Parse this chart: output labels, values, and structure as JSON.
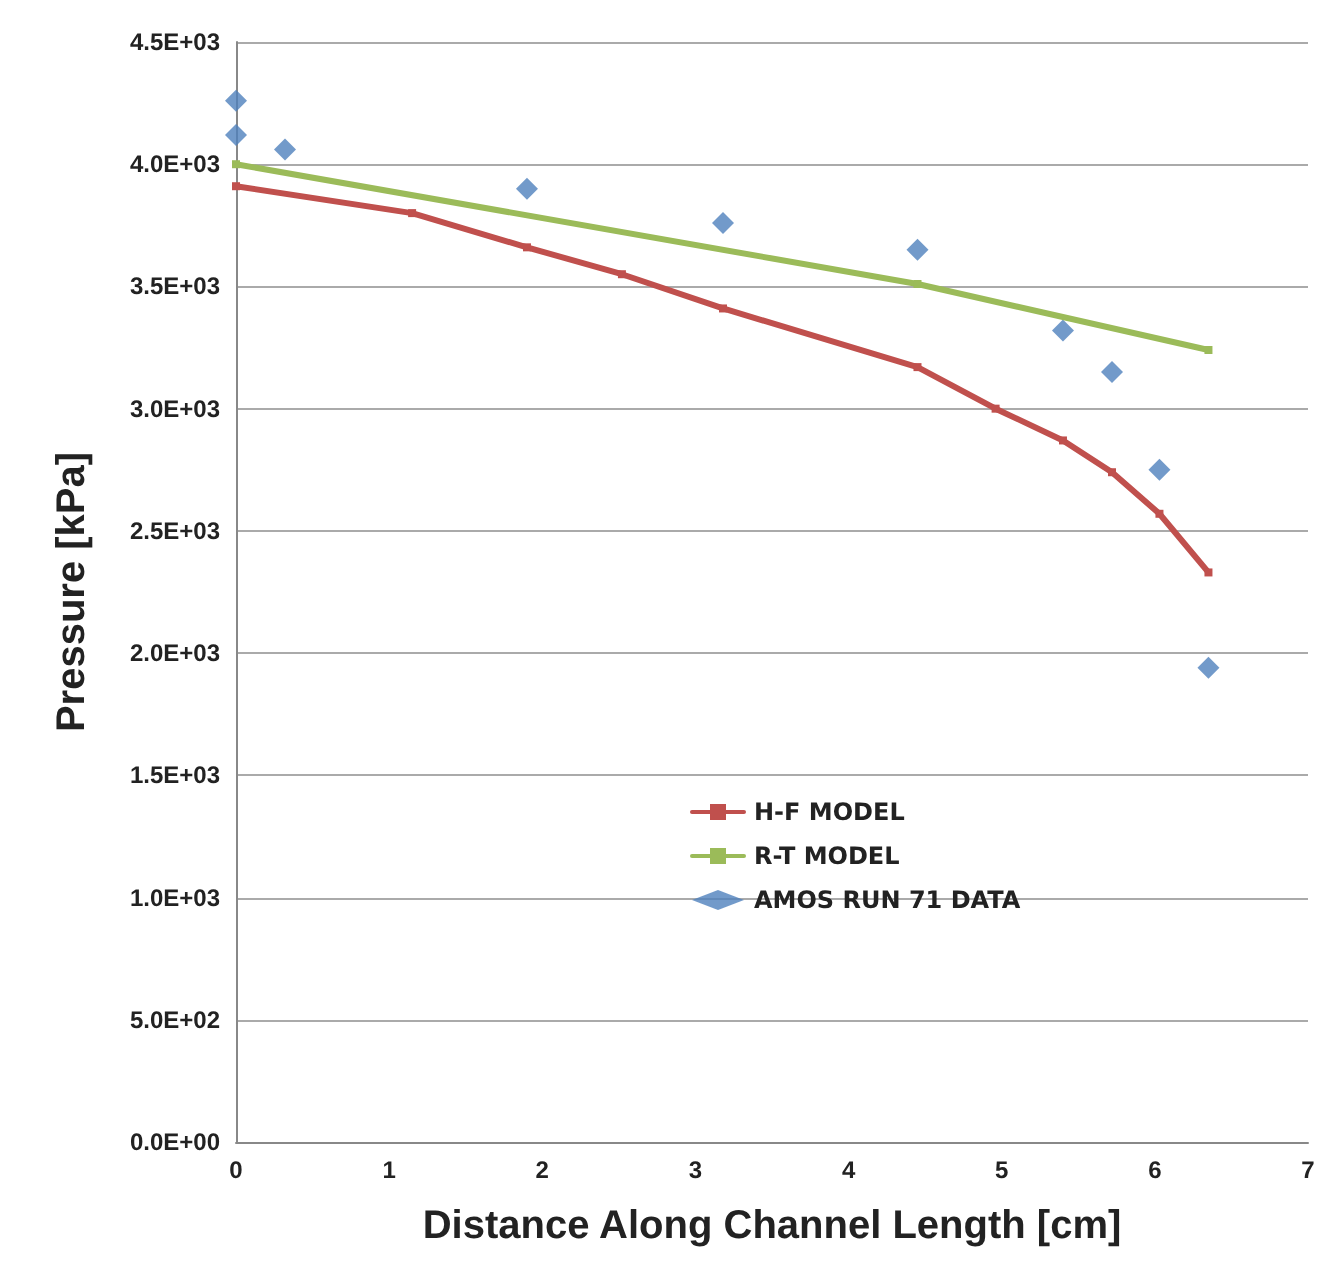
{
  "chart_data": {
    "type": "line",
    "xlabel": "Distance Along Channel Length [cm]",
    "ylabel": "Pressure [kPa]",
    "xlim": [
      0,
      7
    ],
    "xticks": [
      0,
      1,
      2,
      3,
      4,
      5,
      6,
      7
    ],
    "ylim": [
      0,
      4500
    ],
    "yticks": [
      {
        "value": 0,
        "label": "0.0E+00"
      },
      {
        "value": 500,
        "label": "5.0E+02"
      },
      {
        "value": 1000,
        "label": "1.0E+03"
      },
      {
        "value": 1500,
        "label": "1.5E+03"
      },
      {
        "value": 2000,
        "label": "2.0E+03"
      },
      {
        "value": 2500,
        "label": "2.5E+03"
      },
      {
        "value": 3000,
        "label": "3.0E+03"
      },
      {
        "value": 3500,
        "label": "3.5E+03"
      },
      {
        "value": 4000,
        "label": "4.0E+03"
      },
      {
        "value": 4500,
        "label": "4.5E+03"
      }
    ],
    "grid": "y",
    "legend": "bottom",
    "series": [
      {
        "name": "H-F MODEL",
        "color": "#c0504d",
        "marker": "square",
        "line_style": "solid",
        "x": [
          0,
          1.15,
          1.9,
          2.52,
          3.18,
          4.45,
          4.96,
          5.4,
          5.72,
          6.03,
          6.35
        ],
        "values": [
          3910,
          3800,
          3660,
          3550,
          3410,
          3170,
          3000,
          2870,
          2740,
          2570,
          2330
        ]
      },
      {
        "name": "R-T MODEL",
        "color": "#9bbb59",
        "marker": "square",
        "line_style": "solid",
        "x": [
          0,
          4.45,
          6.35
        ],
        "values": [
          4000,
          3510,
          3240
        ]
      },
      {
        "name": "AMOS RUN 71 DATA",
        "type": "scatter",
        "color": "#4f81bd",
        "marker": "diamond",
        "x": [
          0,
          0,
          0.32,
          1.9,
          3.18,
          4.45,
          5.4,
          5.72,
          6.03,
          6.35
        ],
        "values": [
          4260,
          4120,
          4060,
          3900,
          3760,
          3650,
          3320,
          3150,
          2750,
          1940
        ]
      }
    ]
  }
}
